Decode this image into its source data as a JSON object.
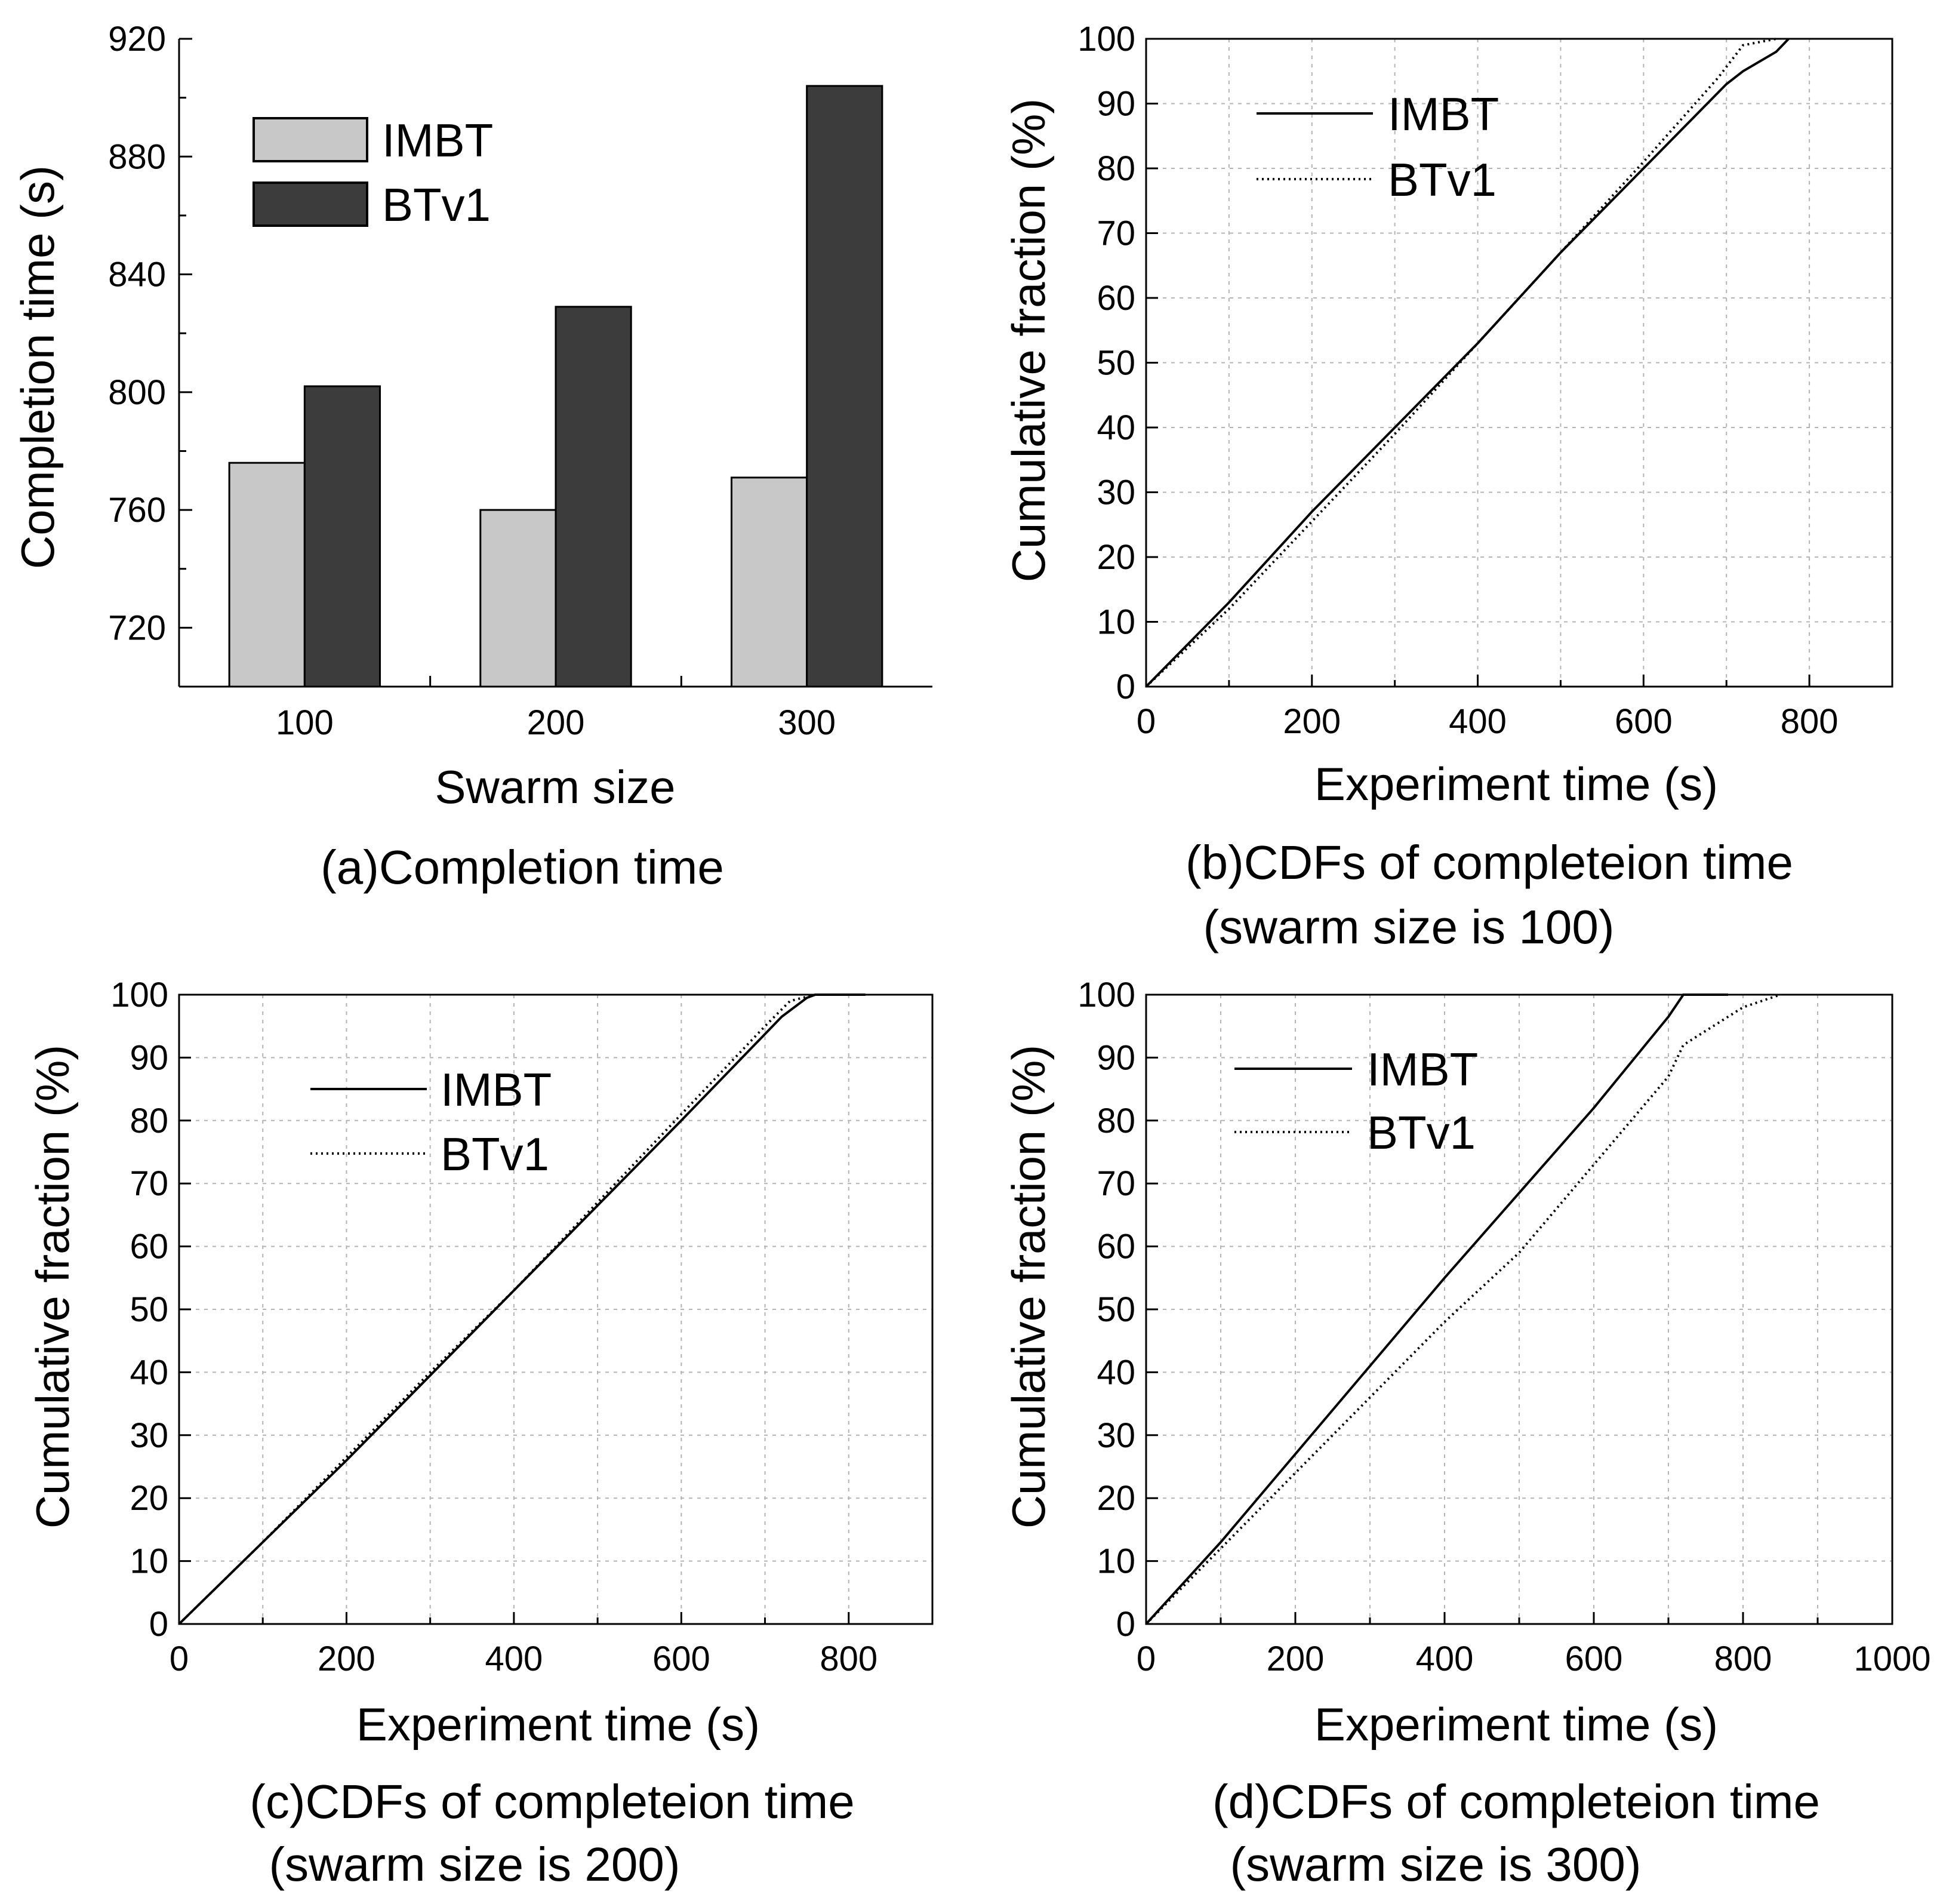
{
  "colors": {
    "imbt_bar": "#c8c8c8",
    "btv1_bar": "#3c3c3c",
    "axis": "#000000",
    "grid": "#b4b4b4"
  },
  "chart_data": [
    {
      "id": "a",
      "type": "bar",
      "caption": [
        "(a)Completion time"
      ],
      "xlabel": "Swarm size",
      "ylabel": "Completion time (s)",
      "categories": [
        "100",
        "200",
        "300"
      ],
      "series": [
        {
          "name": "IMBT",
          "values": [
            776,
            760,
            771
          ]
        },
        {
          "name": "BTv1",
          "values": [
            802,
            829,
            904
          ]
        }
      ],
      "ylim": [
        700,
        920
      ],
      "yticks": [
        720,
        760,
        800,
        840,
        880,
        920
      ],
      "grid": false,
      "legend": "top-left"
    },
    {
      "id": "b",
      "type": "line",
      "caption": [
        "(b)CDFs of completeion time",
        "(swarm size is 100)"
      ],
      "xlabel": "Experiment time (s)",
      "ylabel": "Cumulative fraction (%)",
      "xlim": [
        0,
        900
      ],
      "ylim": [
        0,
        100
      ],
      "xticks": [
        0,
        200,
        400,
        600,
        800
      ],
      "yticks": [
        0,
        10,
        20,
        30,
        40,
        50,
        60,
        70,
        80,
        90,
        100
      ],
      "grid": true,
      "legend": "top-left",
      "series": [
        {
          "name": "IMBT",
          "style": "solid",
          "x": [
            0,
            100,
            200,
            300,
            400,
            500,
            600,
            700,
            720,
            760,
            775
          ],
          "y": [
            0,
            13,
            27,
            40,
            53,
            67,
            80,
            93,
            95,
            98,
            100
          ]
        },
        {
          "name": "BTv1",
          "style": "dotted",
          "x": [
            0,
            100,
            200,
            300,
            400,
            500,
            600,
            690,
            720,
            760
          ],
          "y": [
            0,
            12,
            25.5,
            39,
            53,
            67,
            81,
            94,
            99,
            100
          ]
        }
      ]
    },
    {
      "id": "c",
      "type": "line",
      "caption": [
        "(c)CDFs of completeion time",
        "(swarm size is 200)"
      ],
      "xlabel": "Experiment time (s)",
      "ylabel": "Cumulative fraction (%)",
      "xlim": [
        0,
        900
      ],
      "ylim": [
        0,
        100
      ],
      "xticks": [
        0,
        200,
        400,
        600,
        800
      ],
      "yticks": [
        0,
        10,
        20,
        30,
        40,
        50,
        60,
        70,
        80,
        90,
        100
      ],
      "grid": true,
      "legend": "top-left",
      "series": [
        {
          "name": "IMBT",
          "style": "solid",
          "x": [
            0,
            100,
            200,
            300,
            400,
            500,
            600,
            720,
            750,
            760,
            800,
            820
          ],
          "y": [
            0,
            13,
            26,
            39.5,
            53,
            66.5,
            80,
            96.5,
            99.5,
            100,
            100,
            100
          ]
        },
        {
          "name": "BTv1",
          "style": "dotted",
          "x": [
            0,
            100,
            200,
            300,
            400,
            500,
            600,
            700,
            730,
            760,
            820
          ],
          "y": [
            0,
            13,
            26.5,
            40,
            53,
            67,
            81,
            95,
            99,
            100,
            100
          ]
        }
      ]
    },
    {
      "id": "d",
      "type": "line",
      "caption": [
        "(d)CDFs of completeion time",
        "(swarm size is 300)"
      ],
      "xlabel": "Experiment time (s)",
      "ylabel": "Cumulative fraction (%)",
      "xlim": [
        0,
        1000
      ],
      "ylim": [
        0,
        100
      ],
      "xticks": [
        0,
        200,
        400,
        600,
        800,
        1000
      ],
      "yticks": [
        0,
        10,
        20,
        30,
        40,
        50,
        60,
        70,
        80,
        90,
        100
      ],
      "grid": true,
      "legend": "top-left",
      "series": [
        {
          "name": "IMBT",
          "style": "solid",
          "x": [
            0,
            100,
            200,
            300,
            400,
            500,
            600,
            700,
            720,
            780
          ],
          "y": [
            0,
            13,
            27,
            41,
            55,
            68.5,
            82,
            96.5,
            100,
            100
          ]
        },
        {
          "name": "BTv1",
          "style": "dotted",
          "x": [
            0,
            100,
            200,
            300,
            400,
            500,
            600,
            700,
            720,
            800,
            850
          ],
          "y": [
            0,
            12,
            24,
            36,
            48,
            59,
            73,
            87,
            92,
            98,
            100
          ]
        }
      ]
    }
  ]
}
